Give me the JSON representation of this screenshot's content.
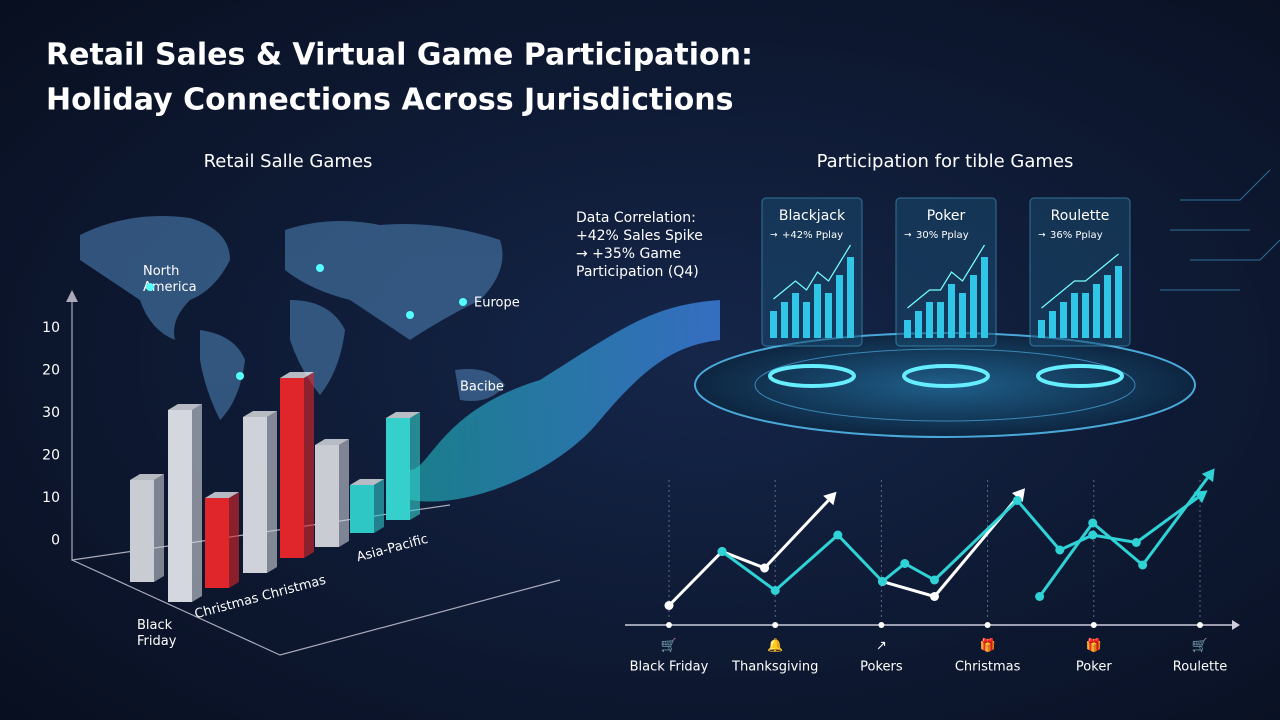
{
  "title_lines": [
    "Retail Sales & Virtual Game Participation:",
    "Holiday Connections Across Jurisdictions"
  ],
  "left_heading": "Retail Salle Games",
  "map_labels": [
    "North America",
    "Europe",
    "Bacibe"
  ],
  "bar_chart": {
    "type": "bar3d",
    "axis_labels": [
      "10",
      "20",
      "30",
      "20",
      "10",
      "0"
    ],
    "category_labels": [
      "Black Friday",
      "Christmas Christmas",
      "Asia-Pacific"
    ],
    "ylim": [
      0,
      40
    ],
    "values": [
      17,
      32,
      15,
      26,
      30,
      17,
      8,
      17
    ],
    "colors": [
      "#c9ccd3",
      "#d4d7dd",
      "#e0262b",
      "#cfd2d8",
      "#e0262b",
      "#c9ccd3",
      "#2fc6c6",
      "#35d0cc"
    ]
  },
  "annotation_lines": [
    "Data Correlation:",
    "+42% Sales Spike",
    "→ +35% Game",
    "Participation (Q4)"
  ],
  "right_heading": "Participation for tible Games",
  "cards": [
    {
      "name": "Blackjack",
      "sub": "+42% Pplay",
      "values": [
        3,
        4,
        5,
        4,
        6,
        5,
        7,
        9
      ],
      "ylim": [
        0,
        10
      ]
    },
    {
      "name": "Poker",
      "sub": "30% Pplay",
      "values": [
        2,
        3,
        4,
        4,
        6,
        5,
        7,
        9
      ],
      "ylim": [
        0,
        10
      ]
    },
    {
      "name": "Roulette",
      "sub": "36% Pplay",
      "values": [
        2,
        3,
        4,
        5,
        5,
        6,
        7,
        8
      ],
      "ylim": [
        0,
        10
      ]
    }
  ],
  "line_chart": {
    "type": "line",
    "categories": [
      "Black Friday",
      "Thanksgiving",
      "Pokers",
      "Christmas",
      "Poker",
      "Roulette"
    ],
    "xlim": [
      0,
      5
    ],
    "ylim": [
      0,
      10
    ],
    "series": [
      {
        "color": "#ffffff",
        "x": [
          0,
          0.5,
          0.9,
          1.5
        ],
        "values": [
          1.3,
          4.9,
          3.8,
          8.3
        ]
      },
      {
        "color": "#ffffff",
        "x": [
          2.01,
          2.5,
          3.28
        ],
        "values": [
          2.9,
          1.9,
          8.5
        ]
      },
      {
        "color": "#2fd3d6",
        "x": [
          0.5,
          1.0,
          1.59,
          2.01,
          2.22,
          2.5,
          3.28,
          3.68,
          3.99,
          4.4,
          4.98
        ],
        "values": [
          4.9,
          2.3,
          6.0,
          2.9,
          4.1,
          3.0,
          8.3,
          5.0,
          6.0,
          5.5,
          8.5
        ]
      },
      {
        "color": "#2fd3d6",
        "x": [
          3.49,
          3.99,
          4.46,
          5.07
        ],
        "values": [
          1.9,
          6.8,
          4.0,
          9.8
        ]
      }
    ]
  }
}
